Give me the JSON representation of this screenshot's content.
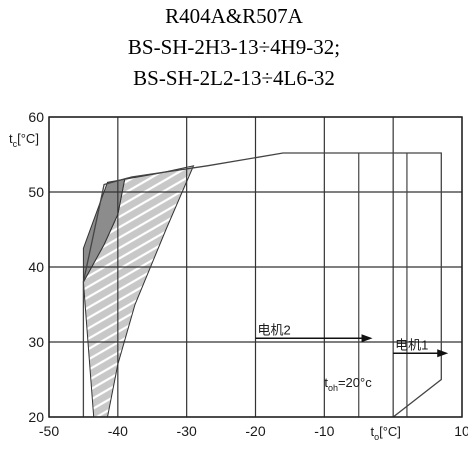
{
  "title_lines": [
    "R404A&R507A",
    "BS-SH-2H3-13÷4H9-32;",
    "BS-SH-2L2-13÷4L6-32"
  ],
  "chart_data": {
    "type": "area",
    "xlim": [
      -50,
      10
    ],
    "ylim": [
      20,
      60
    ],
    "x_ticks": [
      -50,
      -40,
      -30,
      -20,
      -10,
      10
    ],
    "y_ticks": [
      20,
      30,
      40,
      50,
      60
    ],
    "ylabel": {
      "main": "t",
      "sub": "c",
      "unit": "[°C]"
    },
    "xlabel": {
      "main": "t",
      "sub": "o",
      "unit": "[°C]"
    },
    "grid": true,
    "envelope": [
      [
        -45,
        20
      ],
      [
        -45,
        38
      ],
      [
        -42,
        51
      ],
      [
        -38,
        52
      ],
      [
        -27,
        53.5
      ],
      [
        -16,
        55.2
      ],
      [
        7,
        55.2
      ],
      [
        7,
        25
      ],
      [
        0,
        20
      ]
    ],
    "dark_region": [
      [
        -45,
        38
      ],
      [
        -45,
        42.5
      ],
      [
        -41.5,
        51.3
      ],
      [
        -39,
        51.7
      ],
      [
        -40,
        47
      ],
      [
        -42,
        43
      ]
    ],
    "hatched_region": [
      [
        -43.5,
        20
      ],
      [
        -45,
        38
      ],
      [
        -42,
        43
      ],
      [
        -40,
        47
      ],
      [
        -39,
        51.7
      ],
      [
        -34,
        52.5
      ],
      [
        -29,
        53.5
      ],
      [
        -33,
        45
      ],
      [
        -37.5,
        35
      ],
      [
        -40,
        27
      ],
      [
        -41.5,
        20
      ]
    ],
    "inner_lines": [
      {
        "x": [
          -5,
          -5
        ],
        "y": [
          20,
          55.2
        ]
      },
      {
        "x": [
          2,
          2
        ],
        "y": [
          20,
          55.2
        ]
      }
    ],
    "annotations": [
      {
        "label": "电机2",
        "x_from": -20,
        "x_to": -3,
        "y": 30.5
      },
      {
        "label": "电机1",
        "x_from": 0,
        "x_to": 8,
        "y": 28.5
      },
      {
        "label_main": "t",
        "label_sub": "oh",
        "label_rest": "=20°c",
        "x": -10,
        "y": 24
      }
    ]
  }
}
